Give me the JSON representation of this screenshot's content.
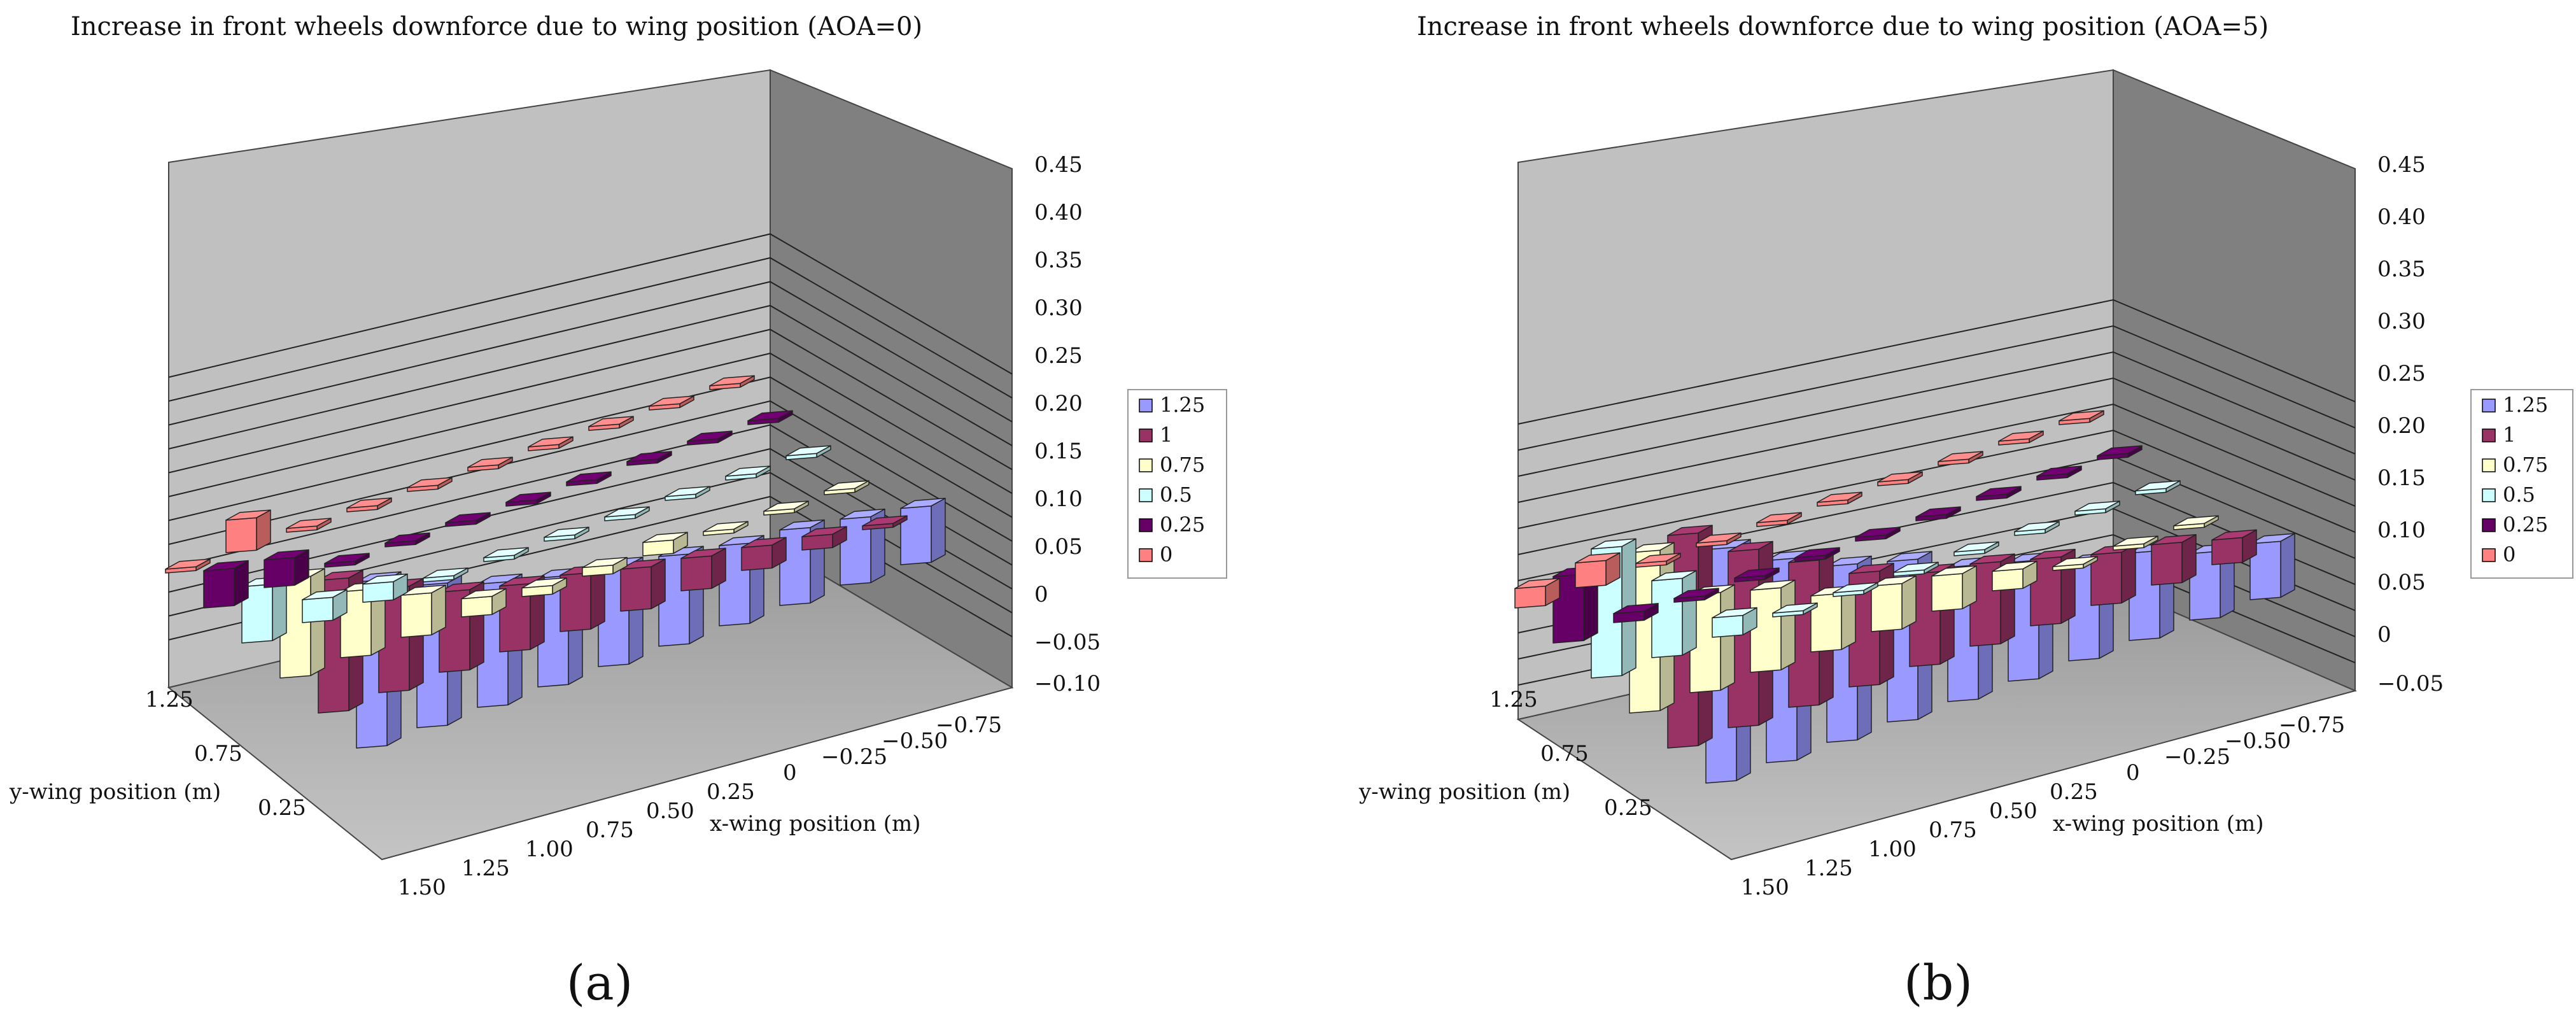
{
  "chart_data": [
    {
      "type": "bar3d",
      "caption": "(a)",
      "title": "Increase in front wheels downforce due to wing position (AOA=0)",
      "xlabel": "x-wing position (m)",
      "ylabel": "y-wing position (m)",
      "zlim": [
        -0.1,
        0.45
      ],
      "z_ticks": [
        "0.45",
        "0.40",
        "0.35",
        "0.30",
        "0.25",
        "0.20",
        "0.15",
        "0.10",
        "0.05",
        "0",
        "−0.05",
        "−0.10"
      ],
      "x_ticks": [
        "1.50",
        "1.25",
        "1.00",
        "0.75",
        "0.50",
        "0.25",
        "0",
        "−0.25",
        "−0.50",
        "−0.75"
      ],
      "y_ticks": [
        "1.25",
        "0.75",
        "0.25"
      ],
      "legend": [
        "1.25",
        "1",
        "0.75",
        "0.5",
        "0.25",
        "0"
      ],
      "series": [
        {
          "name": "1.25",
          "color": "#9999ff",
          "values": [
            0.34,
            0.29,
            0.25,
            0.22,
            0.2,
            0.18,
            0.16,
            0.15,
            0.13,
            0.11
          ]
        },
        {
          "name": "1",
          "color": "#993366",
          "values": [
            0.27,
            0.21,
            0.16,
            0.13,
            0.11,
            0.08,
            0.06,
            0.04,
            0.02,
            0.0
          ]
        },
        {
          "name": "0.75",
          "color": "#ffffcc",
          "values": [
            0.2,
            0.13,
            0.08,
            0.03,
            0.01,
            0.01,
            0.02,
            0.0,
            0.0,
            0.0
          ]
        },
        {
          "name": "0.5",
          "color": "#ccffff",
          "values": [
            0.11,
            0.04,
            0.03,
            0.0,
            0.0,
            0.0,
            0.0,
            0.0,
            0.0,
            0.0
          ]
        },
        {
          "name": "0.25",
          "color": "#660066",
          "values": [
            0.07,
            0.05,
            0.0,
            0.0,
            0.0,
            0.0,
            0.0,
            0.0,
            0.0,
            0.0
          ]
        },
        {
          "name": "0",
          "color": "#ff8080",
          "values": [
            0.0,
            0.06,
            0.0,
            0.0,
            0.0,
            0.0,
            0.0,
            0.0,
            0.0,
            0.0
          ]
        }
      ]
    },
    {
      "type": "bar3d",
      "caption": "(b)",
      "title": "Increase in front wheels downforce due to wing position (AOA=5)",
      "xlabel": "x-wing position (m)",
      "ylabel": "y-wing position (m)",
      "zlim": [
        -0.05,
        0.45
      ],
      "z_ticks": [
        "0.45",
        "0.40",
        "0.35",
        "0.30",
        "0.25",
        "0.20",
        "0.15",
        "0.10",
        "0.05",
        "0",
        "−0.05"
      ],
      "x_ticks": [
        "1.50",
        "1.25",
        "1.00",
        "0.75",
        "0.50",
        "0.25",
        "0",
        "−0.25",
        "−0.50",
        "−0.75"
      ],
      "y_ticks": [
        "1.25",
        "0.75",
        "0.25"
      ],
      "legend": [
        "1.25",
        "1",
        "0.75",
        "0.5",
        "0.25",
        "0"
      ],
      "series": [
        {
          "name": "1.25",
          "color": "#9999ff",
          "values": [
            0.44,
            0.38,
            0.33,
            0.3,
            0.25,
            0.22,
            0.18,
            0.16,
            0.12,
            0.1
          ]
        },
        {
          "name": "1",
          "color": "#993366",
          "values": [
            0.4,
            0.33,
            0.27,
            0.21,
            0.17,
            0.15,
            0.12,
            0.09,
            0.07,
            0.04
          ]
        },
        {
          "name": "0.75",
          "color": "#ffffcc",
          "values": [
            0.3,
            0.18,
            0.15,
            0.1,
            0.08,
            0.06,
            0.03,
            0.0,
            0.0,
            0.0
          ]
        },
        {
          "name": "0.5",
          "color": "#ccffff",
          "values": [
            0.24,
            0.14,
            0.03,
            0.0,
            0.0,
            0.0,
            0.0,
            0.0,
            0.0,
            0.0
          ]
        },
        {
          "name": "0.25",
          "color": "#660066",
          "values": [
            0.12,
            0.01,
            0.0,
            0.0,
            0.0,
            0.0,
            0.0,
            0.0,
            0.0,
            0.0
          ]
        },
        {
          "name": "0",
          "color": "#ff8080",
          "values": [
            0.03,
            0.04,
            0.0,
            0.0,
            0.0,
            0.0,
            0.0,
            0.0,
            0.0,
            0.0
          ]
        }
      ]
    }
  ]
}
